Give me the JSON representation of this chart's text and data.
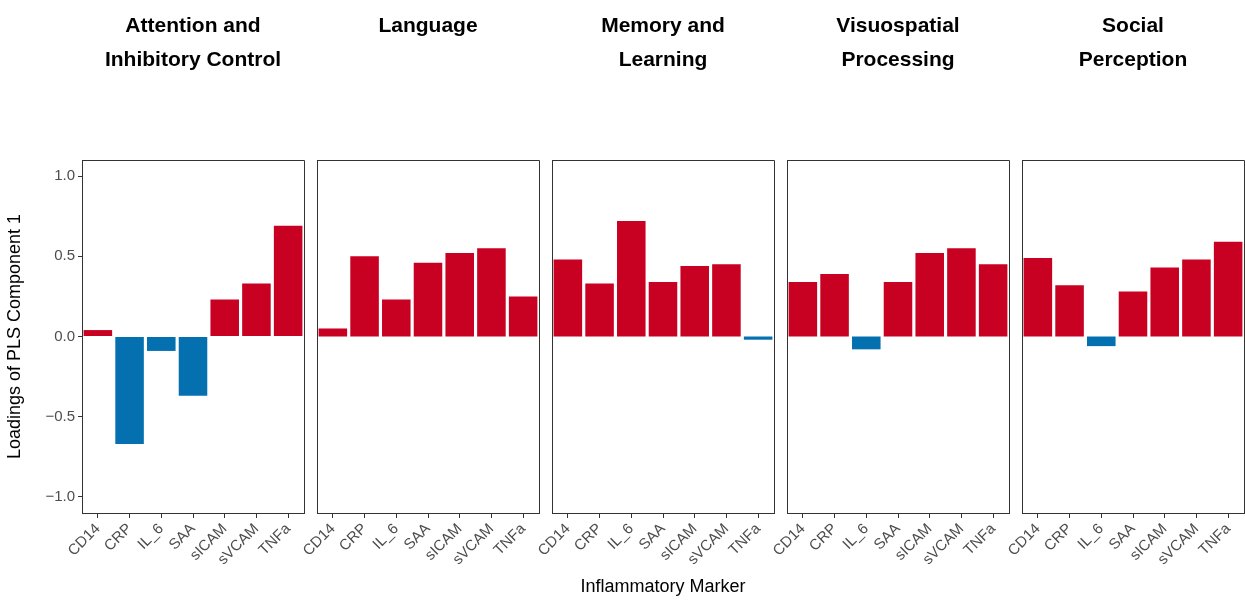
{
  "chart_data": [
    {
      "type": "bar",
      "title": "Attention and\nInhibitory Control",
      "ylabel": "Loadings of PLS Component 1",
      "categories": [
        "CD14",
        "CRP",
        "IL_6",
        "SAA",
        "sICAM",
        "sVCAM",
        "TNFa"
      ],
      "values": [
        0.04,
        -0.67,
        -0.09,
        -0.37,
        0.23,
        0.33,
        0.69
      ],
      "colors": [
        "#c80021",
        "#0570b0",
        "#0570b0",
        "#0570b0",
        "#c80021",
        "#c80021",
        "#c80021"
      ],
      "ylim": [
        -1.1,
        1.1
      ],
      "yticks": [
        {
          "value": -1,
          "label": "−1.0"
        },
        {
          "value": -0.5,
          "label": "−0.5"
        },
        {
          "value": 0,
          "label": "0.0"
        },
        {
          "value": 0.5,
          "label": "0.5"
        },
        {
          "value": 1,
          "label": "1.0"
        }
      ]
    },
    {
      "type": "bar",
      "title": "Language",
      "categories": [
        "CD14",
        "CRP",
        "IL_6",
        "SAA",
        "sICAM",
        "sVCAM",
        "TNFa"
      ],
      "values": [
        0.05,
        0.5,
        0.23,
        0.46,
        0.52,
        0.55,
        0.25
      ],
      "colors": [
        "#c80021",
        "#c80021",
        "#c80021",
        "#c80021",
        "#c80021",
        "#c80021",
        "#c80021"
      ],
      "ylim": [
        -1.1,
        1.1
      ],
      "tick_labels": "x"
    },
    {
      "type": "bar",
      "title": "Memory and\nLearning",
      "xlabel": "Inflammatory Marker",
      "categories": [
        "CD14",
        "CRP",
        "IL_6",
        "SAA",
        "sICAM",
        "sVCAM",
        "TNFa"
      ],
      "values": [
        0.48,
        0.33,
        0.72,
        0.34,
        0.44,
        0.45,
        -0.02
      ],
      "colors": [
        "#c80021",
        "#c80021",
        "#c80021",
        "#c80021",
        "#c80021",
        "#c80021",
        "#0570b0"
      ],
      "ylim": [
        -1.1,
        1.1
      ],
      "tick_labels": "x"
    },
    {
      "type": "bar",
      "title": "Visuospatial\nProcessing",
      "categories": [
        "CD14",
        "CRP",
        "IL_6",
        "SAA",
        "sICAM",
        "sVCAM",
        "TNFa"
      ],
      "values": [
        0.34,
        0.39,
        -0.08,
        0.34,
        0.52,
        0.55,
        0.45
      ],
      "colors": [
        "#c80021",
        "#c80021",
        "#0570b0",
        "#c80021",
        "#c80021",
        "#c80021",
        "#c80021"
      ],
      "ylim": [
        -1.1,
        1.1
      ],
      "tick_labels": "x"
    },
    {
      "type": "bar",
      "title": "Social\nPerception",
      "categories": [
        "CD14",
        "CRP",
        "IL_6",
        "SAA",
        "sICAM",
        "sVCAM",
        "TNFa"
      ],
      "values": [
        0.49,
        0.32,
        -0.06,
        0.28,
        0.43,
        0.48,
        0.59
      ],
      "colors": [
        "#c80021",
        "#c80021",
        "#0570b0",
        "#c80021",
        "#c80021",
        "#c80021",
        "#c80021"
      ],
      "ylim": [
        -1.1,
        1.1
      ],
      "tick_labels": "x"
    }
  ]
}
